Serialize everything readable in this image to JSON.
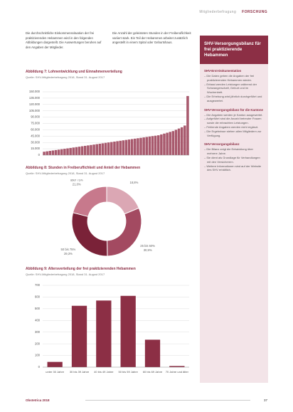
{
  "header": {
    "section": "Mitgliederbefragung",
    "tag": "FORSCHUNG"
  },
  "intro": [
    "Die durchschnittliche Einkommenssituation der frei praktizierenden Hebammen wird in den folgenden Abbildungen dargestellt. Die Auswertungen beruhen auf den Angaben der Mitglieder.",
    "Die Anzahl der geleisteten Stunden in der Freiberuflichkeit variiert stark. Ein Teil der Hebammen arbeitet zusätzlich angestellt in einem Spital oder Geburtshaus."
  ],
  "chart_data": [
    {
      "type": "bar",
      "title": "Abbildung 7: Lohnentwicklung und Einnahmenverteilung",
      "source": "Quelle: SHV-Mitgliederbefragung 2018, Stand 31. August 2017",
      "color": "#a8596d",
      "grid": true,
      "values": [
        8000,
        9000,
        10000,
        11000,
        12000,
        13000,
        14000,
        15000,
        16000,
        17000,
        18000,
        19000,
        20000,
        21000,
        22000,
        23000,
        24000,
        25000,
        26000,
        27000,
        28000,
        29000,
        30000,
        31000,
        32000,
        33000,
        34000,
        35000,
        36000,
        37000,
        38000,
        39000,
        40000,
        41000,
        42000,
        43000,
        44000,
        45000,
        46000,
        47000,
        49000,
        51000,
        53000,
        55000,
        57000,
        60000,
        63000,
        66000,
        70000,
        140000
      ],
      "ylim": [
        0,
        150000
      ],
      "yticks": [
        {
          "value": 0,
          "label": "0"
        },
        {
          "value": 15000,
          "label": "15.000"
        },
        {
          "value": 30000,
          "label": "30.000"
        },
        {
          "value": 45000,
          "label": "45.000"
        },
        {
          "value": 60000,
          "label": "60.000"
        },
        {
          "value": 75000,
          "label": "75.000"
        },
        {
          "value": 90000,
          "label": "90.000"
        },
        {
          "value": 105000,
          "label": "105.000"
        },
        {
          "value": 120000,
          "label": "120.000"
        },
        {
          "value": 135000,
          "label": "135.000"
        },
        {
          "value": 150000,
          "label": "150.000"
        }
      ]
    },
    {
      "type": "pie",
      "title": "Abbildung 8: Stunden in Freiberuflichkeit und Anteil der Hebammen",
      "source": "Quelle: SHV-Mitgliederbefragung 2018, Stand 31. August 2017",
      "categories": [
        "bis 25%",
        "25 bis 50%",
        "50 bis 75%",
        "über 75%"
      ],
      "values": [
        18.8,
        30.9,
        29.3,
        21.0
      ],
      "value_labels": [
        "18,8%",
        "30,9%",
        "29,3%",
        "21,0%"
      ],
      "colors": [
        "#dba7b4",
        "#a34a61",
        "#7a2238",
        "#c7798c"
      ]
    },
    {
      "type": "bar",
      "title": "Abbildung 9: Altersverteilung der frei praktizierenden Hebammen",
      "source": "Quelle: SHV-Mitgliederbefragung 2018, Stand 31. August 2017",
      "color": "#8c2f45",
      "grid": true,
      "categories": [
        "unter 30 Jahre",
        "30 bis 39 Jahre",
        "40 bis 49 Jahre",
        "50 bis 59 Jahre",
        "60 bis 69 Jahre",
        "70 Jahre und älter"
      ],
      "values": [
        45,
        525,
        570,
        610,
        235,
        10
      ],
      "ylim": [
        0,
        700
      ],
      "yticks": [
        0,
        100,
        200,
        300,
        400,
        500,
        600,
        700
      ]
    }
  ],
  "sidebar": {
    "title": "SHV-Versorgungsbilanz für frei praktizierende Hebammen",
    "sections": [
      {
        "heading": "SHV-Erst-Dokumentation",
        "items": [
          "Die Daten geben die Angaben der frei praktizierenden Hebammen wieder.",
          "Erfasst werden Leistungen während der Schwangerschaft, Geburt und im Wochenbett.",
          "Die Erhebung wird jährlich durchgeführt und ausgewertet."
        ]
      },
      {
        "heading": "SHV-Versorgungsbilanz für die Kantone",
        "items": [
          "Die Angaben werden je Kanton ausgewertet.",
          "Aufgeführt sind die Anzahl betreuter Frauen sowie die erbrachten Leistungen.",
          "Fehlende Angaben werden nicht ergänzt.",
          "Die Ergebnisse stehen allen Mitgliedern zur Verfügung."
        ]
      },
      {
        "heading": "SHV-Versorgungsbilanz",
        "items": [
          "Die Bilanz zeigt die Entwicklung über mehrere Jahre.",
          "Sie dient als Grundlage für Verhandlungen mit den Versicherern.",
          "Weitere Informationen sind auf der Website des SHV erhältlich."
        ]
      }
    ]
  },
  "footer": {
    "left": "Obstetrica 2018",
    "page": "37"
  }
}
